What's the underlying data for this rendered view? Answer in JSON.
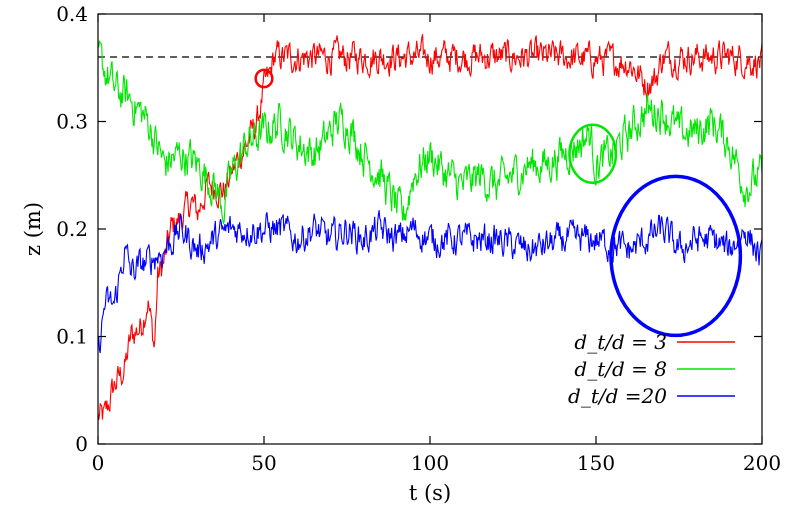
{
  "chart_data": {
    "type": "line",
    "xlabel": "t (s)",
    "ylabel": "z (m)",
    "xlim": [
      0,
      200
    ],
    "ylim": [
      0,
      0.4
    ],
    "x_ticks": [
      "0",
      "50",
      "100",
      "150",
      "200"
    ],
    "y_ticks": [
      "0",
      "0.1",
      "0.2",
      "0.3",
      "0.4"
    ],
    "grid": false,
    "legend_position": "bottom-right",
    "reference_line": {
      "y": 0.36,
      "style": "dashed",
      "color": "#000000"
    },
    "series": [
      {
        "name": "d_t/d = 3",
        "color": "#ff0000",
        "noise": 0.012,
        "points": [
          [
            0,
            0.025
          ],
          [
            2,
            0.025
          ],
          [
            5,
            0.055
          ],
          [
            8,
            0.07
          ],
          [
            10,
            0.1
          ],
          [
            13,
            0.11
          ],
          [
            15,
            0.135
          ],
          [
            17,
            0.09
          ],
          [
            18,
            0.155
          ],
          [
            20,
            0.17
          ],
          [
            22,
            0.2
          ],
          [
            25,
            0.21
          ],
          [
            28,
            0.225
          ],
          [
            30,
            0.215
          ],
          [
            33,
            0.24
          ],
          [
            35,
            0.24
          ],
          [
            38,
            0.235
          ],
          [
            40,
            0.25
          ],
          [
            43,
            0.27
          ],
          [
            45,
            0.28
          ],
          [
            48,
            0.3
          ],
          [
            50,
            0.33
          ],
          [
            52,
            0.345
          ],
          [
            53,
            0.36
          ],
          [
            60,
            0.36
          ],
          [
            80,
            0.36
          ],
          [
            100,
            0.36
          ],
          [
            120,
            0.36
          ],
          [
            140,
            0.36
          ],
          [
            160,
            0.355
          ],
          [
            165,
            0.335
          ],
          [
            168,
            0.34
          ],
          [
            170,
            0.36
          ],
          [
            180,
            0.36
          ],
          [
            190,
            0.36
          ],
          [
            200,
            0.355
          ]
        ]
      },
      {
        "name": "d_t/d = 8",
        "color": "#00e600",
        "noise": 0.015,
        "points": [
          [
            0,
            0.36
          ],
          [
            5,
            0.33
          ],
          [
            10,
            0.32
          ],
          [
            15,
            0.3
          ],
          [
            20,
            0.26
          ],
          [
            25,
            0.27
          ],
          [
            30,
            0.26
          ],
          [
            35,
            0.24
          ],
          [
            38,
            0.22
          ],
          [
            40,
            0.25
          ],
          [
            45,
            0.28
          ],
          [
            50,
            0.29
          ],
          [
            55,
            0.3
          ],
          [
            60,
            0.28
          ],
          [
            65,
            0.27
          ],
          [
            68,
            0.28
          ],
          [
            72,
            0.3
          ],
          [
            75,
            0.3
          ],
          [
            80,
            0.27
          ],
          [
            85,
            0.25
          ],
          [
            90,
            0.22
          ],
          [
            92,
            0.21
          ],
          [
            95,
            0.25
          ],
          [
            100,
            0.27
          ],
          [
            105,
            0.25
          ],
          [
            110,
            0.24
          ],
          [
            115,
            0.25
          ],
          [
            120,
            0.24
          ],
          [
            125,
            0.25
          ],
          [
            130,
            0.26
          ],
          [
            135,
            0.26
          ],
          [
            140,
            0.27
          ],
          [
            145,
            0.28
          ],
          [
            148,
            0.29
          ],
          [
            150,
            0.26
          ],
          [
            155,
            0.27
          ],
          [
            160,
            0.29
          ],
          [
            165,
            0.31
          ],
          [
            170,
            0.31
          ],
          [
            175,
            0.29
          ],
          [
            180,
            0.29
          ],
          [
            185,
            0.3
          ],
          [
            190,
            0.28
          ],
          [
            195,
            0.24
          ],
          [
            200,
            0.25
          ]
        ]
      },
      {
        "name": "d_t/d =20",
        "color": "#0000ff",
        "noise": 0.012,
        "points": [
          [
            0,
            0.08
          ],
          [
            2,
            0.13
          ],
          [
            5,
            0.13
          ],
          [
            8,
            0.18
          ],
          [
            10,
            0.16
          ],
          [
            15,
            0.17
          ],
          [
            20,
            0.18
          ],
          [
            25,
            0.2
          ],
          [
            30,
            0.18
          ],
          [
            35,
            0.19
          ],
          [
            40,
            0.2
          ],
          [
            50,
            0.2
          ],
          [
            55,
            0.2
          ],
          [
            60,
            0.19
          ],
          [
            65,
            0.2
          ],
          [
            70,
            0.19
          ],
          [
            75,
            0.2
          ],
          [
            80,
            0.19
          ],
          [
            85,
            0.2
          ],
          [
            90,
            0.19
          ],
          [
            95,
            0.2
          ],
          [
            100,
            0.19
          ],
          [
            110,
            0.19
          ],
          [
            120,
            0.19
          ],
          [
            130,
            0.18
          ],
          [
            140,
            0.19
          ],
          [
            150,
            0.19
          ],
          [
            160,
            0.18
          ],
          [
            170,
            0.2
          ],
          [
            175,
            0.18
          ],
          [
            180,
            0.19
          ],
          [
            185,
            0.19
          ],
          [
            190,
            0.18
          ],
          [
            195,
            0.2
          ],
          [
            200,
            0.17
          ]
        ]
      }
    ],
    "annotations": [
      {
        "shape": "circle",
        "color": "#ff0000",
        "cx": 50,
        "cy": 0.34,
        "r": 2.5,
        "ry": 0.008
      },
      {
        "shape": "circle",
        "color": "#00e600",
        "cx": 149,
        "cy": 0.27,
        "r": 7,
        "ry": 0.027
      },
      {
        "shape": "circle",
        "color": "#0000ff",
        "cx": 174,
        "cy": 0.175,
        "r": 19.5,
        "ry": 0.074
      }
    ]
  }
}
